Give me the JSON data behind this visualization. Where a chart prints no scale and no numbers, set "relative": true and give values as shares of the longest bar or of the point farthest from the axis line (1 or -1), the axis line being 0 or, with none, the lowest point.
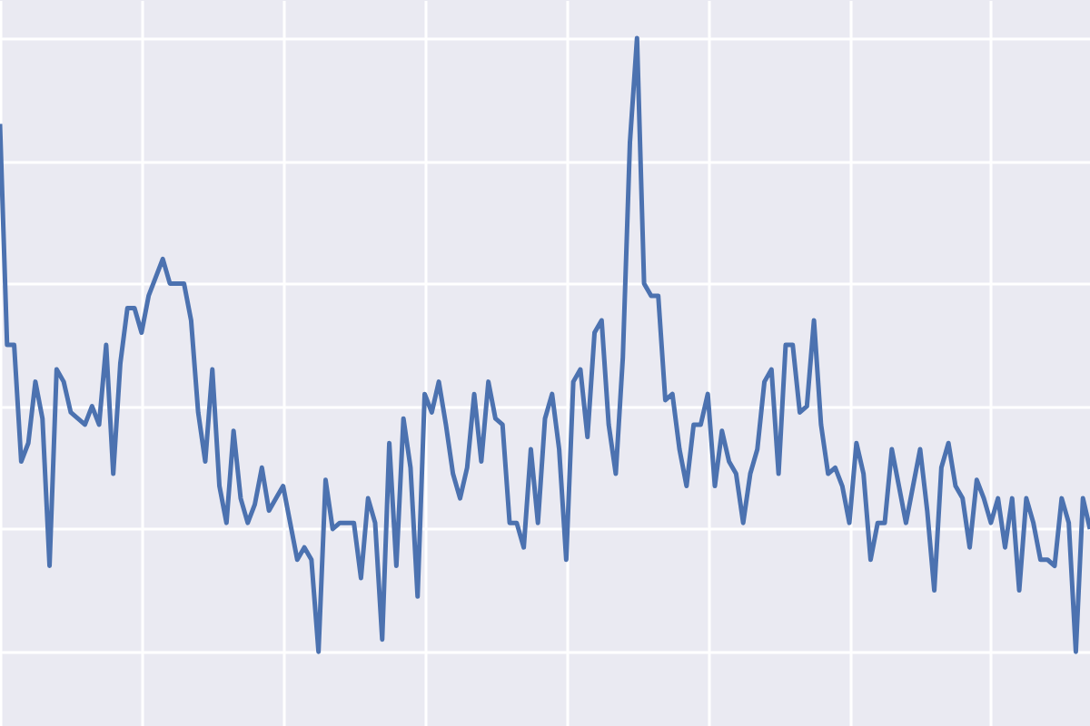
{
  "chart_data": {
    "type": "line",
    "relative": true,
    "grid": true,
    "legend": false,
    "line_style": "solid",
    "marker": "none",
    "categories": [
      null,
      null,
      null,
      null,
      null,
      null,
      null,
      null,
      null,
      null,
      null,
      null,
      null,
      null,
      null,
      null,
      null,
      null,
      null,
      null,
      null,
      null,
      null,
      null,
      null,
      null,
      null,
      null,
      null,
      null,
      null,
      null,
      null,
      null,
      null,
      null,
      null,
      null,
      null,
      null,
      null,
      null,
      null,
      null,
      null,
      null,
      null,
      null,
      null,
      null,
      null,
      null,
      null,
      null,
      null,
      null,
      null,
      null,
      null,
      null,
      null,
      null,
      null,
      null,
      null,
      null,
      null,
      null,
      null,
      null,
      null,
      null,
      null,
      null,
      null,
      null,
      null,
      null,
      null,
      null,
      null,
      null,
      null,
      null,
      null,
      null,
      null,
      null,
      null,
      null,
      null,
      null,
      null,
      null,
      null,
      null,
      null,
      null,
      null,
      null,
      null,
      null,
      null,
      null,
      null,
      null,
      null,
      null,
      null,
      null,
      null,
      null,
      null,
      null,
      null,
      null,
      null,
      null,
      null,
      null,
      null,
      null,
      null,
      null,
      null,
      null,
      null,
      null,
      null,
      null,
      null,
      null,
      null,
      null,
      null,
      null,
      null,
      null,
      null,
      null,
      null,
      null,
      null,
      null,
      null,
      null,
      null,
      null,
      null,
      null,
      null,
      null,
      null,
      null,
      null
    ],
    "series": [
      {
        "color": "#4c72b0",
        "values": [
          0.86,
          0.5,
          0.5,
          0.31,
          0.34,
          0.44,
          0.38,
          0.14,
          0.46,
          0.44,
          0.39,
          0.38,
          0.37,
          0.4,
          0.37,
          0.5,
          0.29,
          0.47,
          0.56,
          0.56,
          0.52,
          0.58,
          0.61,
          0.64,
          0.6,
          0.6,
          0.6,
          0.54,
          0.39,
          0.31,
          0.46,
          0.27,
          0.21,
          0.36,
          0.25,
          0.21,
          0.24,
          0.3,
          0.23,
          0.25,
          0.27,
          0.21,
          0.15,
          0.17,
          0.15,
          0,
          0.28,
          0.2,
          0.21,
          0.21,
          0.21,
          0.12,
          0.25,
          0.21,
          0.02,
          0.34,
          0.14,
          0.38,
          0.3,
          0.09,
          0.42,
          0.39,
          0.44,
          0.37,
          0.29,
          0.25,
          0.3,
          0.42,
          0.31,
          0.44,
          0.38,
          0.37,
          0.21,
          0.21,
          0.17,
          0.33,
          0.21,
          0.38,
          0.42,
          0.33,
          0.15,
          0.44,
          0.46,
          0.35,
          0.52,
          0.54,
          0.37,
          0.29,
          0.48,
          0.83,
          1,
          0.6,
          0.58,
          0.58,
          0.41,
          0.42,
          0.33,
          0.27,
          0.37,
          0.37,
          0.42,
          0.27,
          0.36,
          0.31,
          0.29,
          0.21,
          0.29,
          0.33,
          0.44,
          0.46,
          0.29,
          0.5,
          0.5,
          0.39,
          0.4,
          0.54,
          0.37,
          0.29,
          0.3,
          0.27,
          0.21,
          0.34,
          0.29,
          0.15,
          0.21,
          0.21,
          0.33,
          0.27,
          0.21,
          0.27,
          0.33,
          0.23,
          0.1,
          0.3,
          0.34,
          0.27,
          0.25,
          0.17,
          0.28,
          0.25,
          0.21,
          0.25,
          0.17,
          0.25,
          0.1,
          0.25,
          0.21,
          0.15,
          0.15,
          0.14,
          0.25,
          0.21,
          0,
          0.25,
          0.2
        ]
      }
    ]
  }
}
